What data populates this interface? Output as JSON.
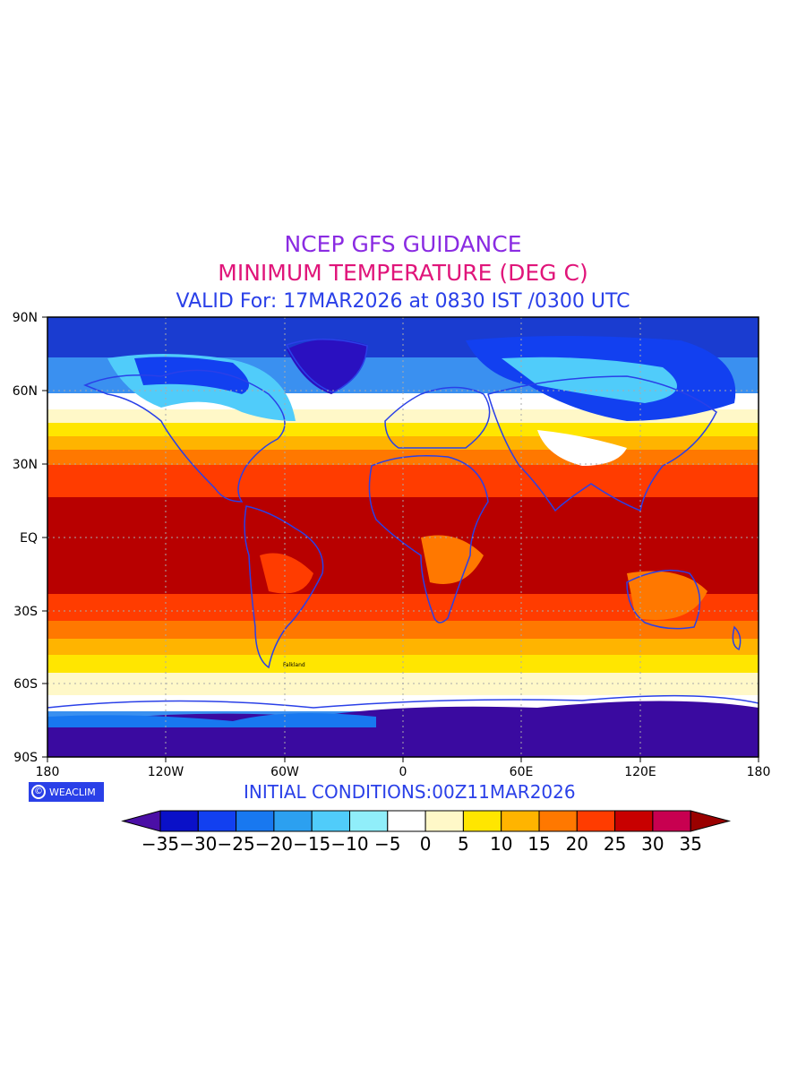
{
  "header": {
    "line1": "NCEP GFS GUIDANCE",
    "line2": "MINIMUM TEMPERATURE (DEG C)",
    "line3": "VALID For: 17MAR2026 at 0830 IST /0300 UTC",
    "colors": {
      "line1": "#8a2be2",
      "line2": "#e0157a",
      "line3": "#2a40e8"
    }
  },
  "map": {
    "lat_labels": [
      "90N",
      "60N",
      "30N",
      "EQ",
      "30S",
      "60S",
      "90S"
    ],
    "lon_labels": [
      "180",
      "120W",
      "60W",
      "0",
      "60E",
      "120E",
      "180"
    ],
    "background": "#b80000",
    "grid": "dotted",
    "outline_color": "#2a40e8",
    "place_labels": [
      {
        "text": "Falkland"
      }
    ]
  },
  "logo": {
    "text": "WEACLIM",
    "icon": "copyright-icon",
    "bg": "#2a40e8"
  },
  "footer": {
    "initial_conditions": "INITIAL CONDITIONS:00Z11MAR2026",
    "color": "#2a40e8"
  },
  "colorbar": {
    "labels": [
      "-35",
      "-30",
      "-25",
      "-20",
      "-15",
      "-10",
      "-5",
      "0",
      "5",
      "10",
      "15",
      "20",
      "25",
      "30",
      "35"
    ],
    "low_arrow_color": "#4b0fa6",
    "high_arrow_color": "#9a0000",
    "colors": [
      "#0a10c8",
      "#1240f0",
      "#1878f0",
      "#2ca0f0",
      "#50ccfa",
      "#90eefa",
      "#ffffff",
      "#fff8c8",
      "#ffe600",
      "#ffb400",
      "#ff7800",
      "#ff3c00",
      "#c80000",
      "#c80050"
    ]
  }
}
